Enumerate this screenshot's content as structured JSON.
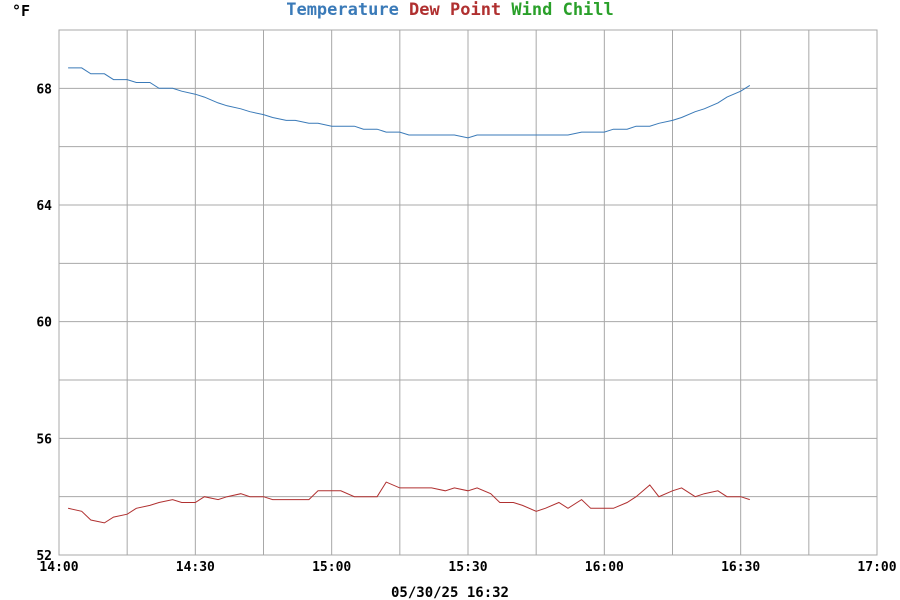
{
  "chart_data": {
    "type": "line",
    "ylabel": "°F",
    "xlabel": "",
    "title_words": [
      {
        "text": "Temperature",
        "color": "#3a7ab8"
      },
      {
        "text": "Dew Point",
        "color": "#b03030"
      },
      {
        "text": "Wind Chill",
        "color": "#2aa02a"
      }
    ],
    "ylim": [
      52,
      70
    ],
    "yticks": [
      52,
      56,
      60,
      64,
      68
    ],
    "ytick_labels": [
      "52",
      "56",
      "60",
      "64",
      "68"
    ],
    "xlim": [
      "14:00",
      "17:00"
    ],
    "xticks": [
      "14:00",
      "14:30",
      "15:00",
      "15:30",
      "16:00",
      "16:30",
      "17:00"
    ],
    "grid": true,
    "timestamp": "05/30/25 16:32",
    "series": [
      {
        "name": "Temperature",
        "color": "#3a7ab8",
        "x": [
          "14:02",
          "14:05",
          "14:07",
          "14:10",
          "14:12",
          "14:15",
          "14:17",
          "14:20",
          "14:22",
          "14:25",
          "14:27",
          "14:30",
          "14:32",
          "14:35",
          "14:37",
          "14:40",
          "14:42",
          "14:45",
          "14:47",
          "14:50",
          "14:52",
          "14:55",
          "14:57",
          "15:00",
          "15:02",
          "15:05",
          "15:07",
          "15:10",
          "15:12",
          "15:15",
          "15:17",
          "15:20",
          "15:22",
          "15:25",
          "15:27",
          "15:30",
          "15:32",
          "15:35",
          "15:37",
          "15:40",
          "15:42",
          "15:45",
          "15:47",
          "15:50",
          "15:52",
          "15:55",
          "15:57",
          "16:00",
          "16:02",
          "16:05",
          "16:07",
          "16:10",
          "16:12",
          "16:15",
          "16:17",
          "16:20",
          "16:22",
          "16:25",
          "16:27",
          "16:30",
          "16:32"
        ],
        "values": [
          68.7,
          68.7,
          68.5,
          68.5,
          68.3,
          68.3,
          68.2,
          68.2,
          68.0,
          68.0,
          67.9,
          67.8,
          67.7,
          67.5,
          67.4,
          67.3,
          67.2,
          67.1,
          67.0,
          66.9,
          66.9,
          66.8,
          66.8,
          66.7,
          66.7,
          66.7,
          66.6,
          66.6,
          66.5,
          66.5,
          66.4,
          66.4,
          66.4,
          66.4,
          66.4,
          66.3,
          66.4,
          66.4,
          66.4,
          66.4,
          66.4,
          66.4,
          66.4,
          66.4,
          66.4,
          66.5,
          66.5,
          66.5,
          66.6,
          66.6,
          66.7,
          66.7,
          66.8,
          66.9,
          67.0,
          67.2,
          67.3,
          67.5,
          67.7,
          67.9,
          68.1
        ]
      },
      {
        "name": "Dew Point",
        "color": "#b03030",
        "x": [
          "14:02",
          "14:05",
          "14:07",
          "14:10",
          "14:12",
          "14:15",
          "14:17",
          "14:20",
          "14:22",
          "14:25",
          "14:27",
          "14:30",
          "14:32",
          "14:35",
          "14:37",
          "14:40",
          "14:42",
          "14:45",
          "14:47",
          "14:50",
          "14:52",
          "14:55",
          "14:57",
          "15:00",
          "15:02",
          "15:05",
          "15:07",
          "15:10",
          "15:12",
          "15:15",
          "15:17",
          "15:20",
          "15:22",
          "15:25",
          "15:27",
          "15:30",
          "15:32",
          "15:35",
          "15:37",
          "15:40",
          "15:42",
          "15:45",
          "15:47",
          "15:50",
          "15:52",
          "15:55",
          "15:57",
          "16:00",
          "16:02",
          "16:05",
          "16:07",
          "16:10",
          "16:12",
          "16:15",
          "16:17",
          "16:20",
          "16:22",
          "16:25",
          "16:27",
          "16:30",
          "16:32"
        ],
        "values": [
          53.6,
          53.5,
          53.2,
          53.1,
          53.3,
          53.4,
          53.6,
          53.7,
          53.8,
          53.9,
          53.8,
          53.8,
          54.0,
          53.9,
          54.0,
          54.1,
          54.0,
          54.0,
          53.9,
          53.9,
          53.9,
          53.9,
          54.2,
          54.2,
          54.2,
          54.0,
          54.0,
          54.0,
          54.5,
          54.3,
          54.3,
          54.3,
          54.3,
          54.2,
          54.3,
          54.2,
          54.3,
          54.1,
          53.8,
          53.8,
          53.7,
          53.5,
          53.6,
          53.8,
          53.6,
          53.9,
          53.6,
          53.6,
          53.6,
          53.8,
          54.0,
          54.4,
          54.0,
          54.2,
          54.3,
          54.0,
          54.1,
          54.2,
          54.0,
          54.0,
          53.9
        ]
      }
    ]
  }
}
